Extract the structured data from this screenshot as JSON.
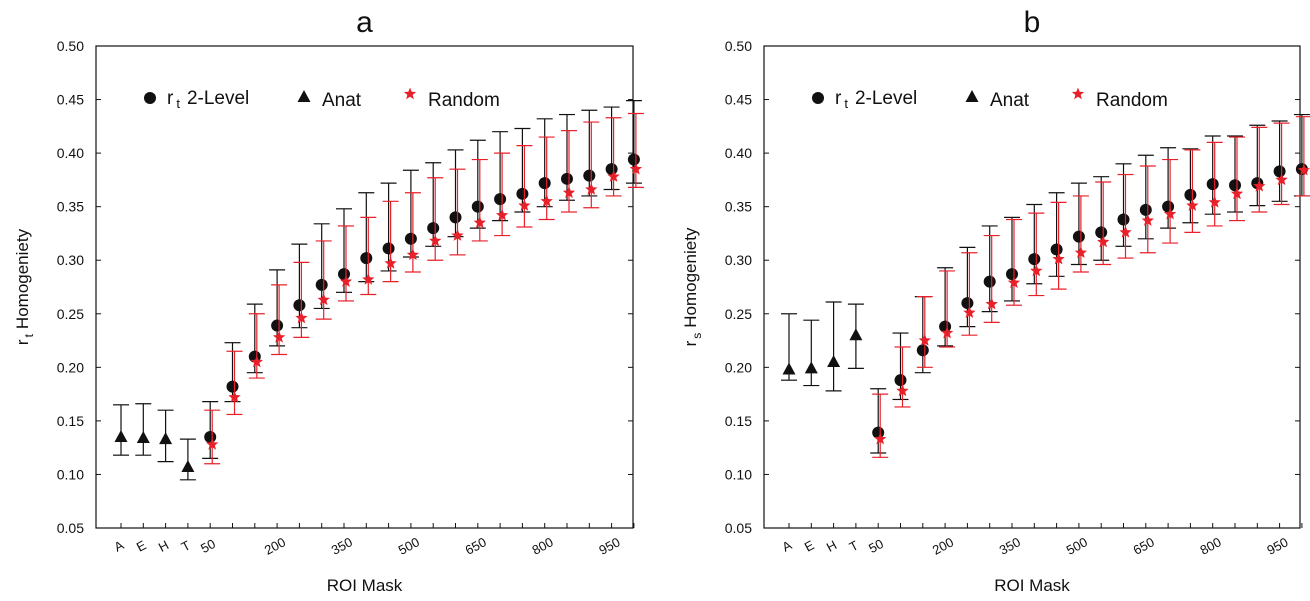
{
  "chart_data": [
    {
      "type": "scatter",
      "title": "a",
      "xlabel": "ROI Mask",
      "ylabel_main": "r",
      "ylabel_sub": "t",
      "ylabel_rest": "Homogeniety",
      "ylim": [
        0.05,
        0.5
      ],
      "yticks": [
        "0.05",
        "0.10",
        "0.15",
        "0.20",
        "0.25",
        "0.30",
        "0.35",
        "0.40",
        "0.45",
        "0.50"
      ],
      "categories": [
        "A",
        "E",
        "H",
        "T",
        "50",
        "100",
        "150",
        "200",
        "250",
        "300",
        "350",
        "400",
        "450",
        "500",
        "550",
        "600",
        "650",
        "700",
        "750",
        "800",
        "850",
        "900",
        "950",
        "1000"
      ],
      "tick_labels": [
        "A",
        "E",
        "H",
        "T",
        "50",
        "",
        "",
        "200",
        "",
        "",
        "350",
        "",
        "",
        "500",
        "",
        "",
        "650",
        "",
        "",
        "800",
        "",
        "",
        "950",
        ""
      ],
      "legend": [
        {
          "name_main": "r",
          "name_sub": "t",
          "name_rest": "2-Level",
          "marker": "circle"
        },
        {
          "name": "Anat",
          "marker": "triangle"
        },
        {
          "name": "Random",
          "marker": "star"
        }
      ],
      "series": [
        {
          "name": "Anat",
          "marker": "triangle",
          "color": "#111111",
          "points": [
            {
              "cat": "A",
              "y": 0.135,
              "lo": 0.118,
              "hi": 0.165
            },
            {
              "cat": "E",
              "y": 0.134,
              "lo": 0.118,
              "hi": 0.166
            },
            {
              "cat": "H",
              "y": 0.133,
              "lo": 0.112,
              "hi": 0.16
            },
            {
              "cat": "T",
              "y": 0.107,
              "lo": 0.095,
              "hi": 0.133
            }
          ]
        },
        {
          "name": "2-Level",
          "marker": "circle",
          "color": "#111111",
          "points": [
            {
              "cat": "50",
              "y": 0.135,
              "lo": 0.115,
              "hi": 0.168
            },
            {
              "cat": "100",
              "y": 0.182,
              "lo": 0.168,
              "hi": 0.223
            },
            {
              "cat": "150",
              "y": 0.21,
              "lo": 0.195,
              "hi": 0.259
            },
            {
              "cat": "200",
              "y": 0.239,
              "lo": 0.22,
              "hi": 0.291
            },
            {
              "cat": "250",
              "y": 0.258,
              "lo": 0.237,
              "hi": 0.315
            },
            {
              "cat": "300",
              "y": 0.277,
              "lo": 0.255,
              "hi": 0.334
            },
            {
              "cat": "350",
              "y": 0.287,
              "lo": 0.27,
              "hi": 0.348
            },
            {
              "cat": "400",
              "y": 0.302,
              "lo": 0.28,
              "hi": 0.363
            },
            {
              "cat": "450",
              "y": 0.311,
              "lo": 0.29,
              "hi": 0.372
            },
            {
              "cat": "500",
              "y": 0.32,
              "lo": 0.303,
              "hi": 0.384
            },
            {
              "cat": "550",
              "y": 0.33,
              "lo": 0.313,
              "hi": 0.391
            },
            {
              "cat": "600",
              "y": 0.34,
              "lo": 0.322,
              "hi": 0.403
            },
            {
              "cat": "650",
              "y": 0.35,
              "lo": 0.33,
              "hi": 0.412
            },
            {
              "cat": "700",
              "y": 0.357,
              "lo": 0.337,
              "hi": 0.42
            },
            {
              "cat": "750",
              "y": 0.362,
              "lo": 0.345,
              "hi": 0.423
            },
            {
              "cat": "800",
              "y": 0.372,
              "lo": 0.35,
              "hi": 0.432
            },
            {
              "cat": "850",
              "y": 0.376,
              "lo": 0.356,
              "hi": 0.436
            },
            {
              "cat": "900",
              "y": 0.379,
              "lo": 0.36,
              "hi": 0.44
            },
            {
              "cat": "950",
              "y": 0.385,
              "lo": 0.366,
              "hi": 0.443
            },
            {
              "cat": "1000",
              "y": 0.394,
              "lo": 0.372,
              "hi": 0.449
            }
          ]
        },
        {
          "name": "Random",
          "marker": "star",
          "color": "#e8202a",
          "points": [
            {
              "cat": "50",
              "y": 0.128,
              "lo": 0.11,
              "hi": 0.16
            },
            {
              "cat": "100",
              "y": 0.172,
              "lo": 0.156,
              "hi": 0.215
            },
            {
              "cat": "150",
              "y": 0.205,
              "lo": 0.19,
              "hi": 0.25
            },
            {
              "cat": "200",
              "y": 0.228,
              "lo": 0.212,
              "hi": 0.277
            },
            {
              "cat": "250",
              "y": 0.246,
              "lo": 0.228,
              "hi": 0.298
            },
            {
              "cat": "300",
              "y": 0.263,
              "lo": 0.245,
              "hi": 0.318
            },
            {
              "cat": "350",
              "y": 0.28,
              "lo": 0.262,
              "hi": 0.332
            },
            {
              "cat": "400",
              "y": 0.282,
              "lo": 0.268,
              "hi": 0.34
            },
            {
              "cat": "450",
              "y": 0.297,
              "lo": 0.28,
              "hi": 0.355
            },
            {
              "cat": "500",
              "y": 0.305,
              "lo": 0.289,
              "hi": 0.363
            },
            {
              "cat": "550",
              "y": 0.318,
              "lo": 0.3,
              "hi": 0.377
            },
            {
              "cat": "600",
              "y": 0.323,
              "lo": 0.305,
              "hi": 0.385
            },
            {
              "cat": "650",
              "y": 0.335,
              "lo": 0.318,
              "hi": 0.394
            },
            {
              "cat": "700",
              "y": 0.342,
              "lo": 0.323,
              "hi": 0.4
            },
            {
              "cat": "750",
              "y": 0.351,
              "lo": 0.331,
              "hi": 0.407
            },
            {
              "cat": "800",
              "y": 0.355,
              "lo": 0.338,
              "hi": 0.415
            },
            {
              "cat": "850",
              "y": 0.363,
              "lo": 0.345,
              "hi": 0.421
            },
            {
              "cat": "900",
              "y": 0.366,
              "lo": 0.349,
              "hi": 0.429
            },
            {
              "cat": "950",
              "y": 0.378,
              "lo": 0.36,
              "hi": 0.433
            },
            {
              "cat": "1000",
              "y": 0.385,
              "lo": 0.368,
              "hi": 0.437
            }
          ]
        }
      ]
    },
    {
      "type": "scatter",
      "title": "b",
      "xlabel": "ROI Mask",
      "ylabel_main": "r",
      "ylabel_sub": "s",
      "ylabel_rest": "Homogeniety",
      "ylim": [
        0.05,
        0.5
      ],
      "yticks": [
        "0.05",
        "0.10",
        "0.15",
        "0.20",
        "0.25",
        "0.30",
        "0.35",
        "0.40",
        "0.45",
        "0.50"
      ],
      "categories": [
        "A",
        "E",
        "H",
        "T",
        "50",
        "100",
        "150",
        "200",
        "250",
        "300",
        "350",
        "400",
        "450",
        "500",
        "550",
        "600",
        "650",
        "700",
        "750",
        "800",
        "850",
        "900",
        "950",
        "1000"
      ],
      "tick_labels": [
        "A",
        "E",
        "H",
        "T",
        "50",
        "",
        "",
        "200",
        "",
        "",
        "350",
        "",
        "",
        "500",
        "",
        "",
        "650",
        "",
        "",
        "800",
        "",
        "",
        "950",
        ""
      ],
      "legend": [
        {
          "name_main": "r",
          "name_sub": "t",
          "name_rest": "2-Level",
          "marker": "circle"
        },
        {
          "name": "Anat",
          "marker": "triangle"
        },
        {
          "name": "Random",
          "marker": "star"
        }
      ],
      "series": [
        {
          "name": "Anat",
          "marker": "triangle",
          "color": "#111111",
          "points": [
            {
              "cat": "A",
              "y": 0.198,
              "lo": 0.188,
              "hi": 0.25
            },
            {
              "cat": "E",
              "y": 0.199,
              "lo": 0.183,
              "hi": 0.244
            },
            {
              "cat": "H",
              "y": 0.205,
              "lo": 0.178,
              "hi": 0.261
            },
            {
              "cat": "T",
              "y": 0.23,
              "lo": 0.199,
              "hi": 0.259
            }
          ]
        },
        {
          "name": "2-Level",
          "marker": "circle",
          "color": "#111111",
          "points": [
            {
              "cat": "50",
              "y": 0.139,
              "lo": 0.12,
              "hi": 0.18
            },
            {
              "cat": "100",
              "y": 0.188,
              "lo": 0.17,
              "hi": 0.232
            },
            {
              "cat": "150",
              "y": 0.216,
              "lo": 0.195,
              "hi": 0.266
            },
            {
              "cat": "200",
              "y": 0.238,
              "lo": 0.22,
              "hi": 0.293
            },
            {
              "cat": "250",
              "y": 0.26,
              "lo": 0.238,
              "hi": 0.312
            },
            {
              "cat": "300",
              "y": 0.28,
              "lo": 0.252,
              "hi": 0.332
            },
            {
              "cat": "350",
              "y": 0.287,
              "lo": 0.262,
              "hi": 0.34
            },
            {
              "cat": "400",
              "y": 0.301,
              "lo": 0.278,
              "hi": 0.352
            },
            {
              "cat": "450",
              "y": 0.31,
              "lo": 0.285,
              "hi": 0.363
            },
            {
              "cat": "500",
              "y": 0.322,
              "lo": 0.296,
              "hi": 0.372
            },
            {
              "cat": "550",
              "y": 0.326,
              "lo": 0.3,
              "hi": 0.378
            },
            {
              "cat": "600",
              "y": 0.338,
              "lo": 0.313,
              "hi": 0.39
            },
            {
              "cat": "650",
              "y": 0.347,
              "lo": 0.32,
              "hi": 0.398
            },
            {
              "cat": "700",
              "y": 0.35,
              "lo": 0.33,
              "hi": 0.405
            },
            {
              "cat": "750",
              "y": 0.361,
              "lo": 0.335,
              "hi": 0.404
            },
            {
              "cat": "800",
              "y": 0.371,
              "lo": 0.343,
              "hi": 0.416
            },
            {
              "cat": "850",
              "y": 0.37,
              "lo": 0.345,
              "hi": 0.416
            },
            {
              "cat": "900",
              "y": 0.372,
              "lo": 0.351,
              "hi": 0.426
            },
            {
              "cat": "950",
              "y": 0.383,
              "lo": 0.355,
              "hi": 0.43
            },
            {
              "cat": "1000",
              "y": 0.385,
              "lo": 0.36,
              "hi": 0.436
            }
          ]
        },
        {
          "name": "Random",
          "marker": "star",
          "color": "#e8202a",
          "points": [
            {
              "cat": "50",
              "y": 0.133,
              "lo": 0.116,
              "hi": 0.175
            },
            {
              "cat": "100",
              "y": 0.178,
              "lo": 0.163,
              "hi": 0.219
            },
            {
              "cat": "150",
              "y": 0.225,
              "lo": 0.2,
              "hi": 0.266
            },
            {
              "cat": "200",
              "y": 0.232,
              "lo": 0.219,
              "hi": 0.29
            },
            {
              "cat": "250",
              "y": 0.251,
              "lo": 0.23,
              "hi": 0.307
            },
            {
              "cat": "300",
              "y": 0.259,
              "lo": 0.242,
              "hi": 0.323
            },
            {
              "cat": "350",
              "y": 0.279,
              "lo": 0.258,
              "hi": 0.338
            },
            {
              "cat": "400",
              "y": 0.29,
              "lo": 0.267,
              "hi": 0.344
            },
            {
              "cat": "450",
              "y": 0.301,
              "lo": 0.273,
              "hi": 0.354
            },
            {
              "cat": "500",
              "y": 0.307,
              "lo": 0.289,
              "hi": 0.36
            },
            {
              "cat": "550",
              "y": 0.317,
              "lo": 0.296,
              "hi": 0.373
            },
            {
              "cat": "600",
              "y": 0.326,
              "lo": 0.302,
              "hi": 0.38
            },
            {
              "cat": "650",
              "y": 0.337,
              "lo": 0.307,
              "hi": 0.388
            },
            {
              "cat": "700",
              "y": 0.343,
              "lo": 0.316,
              "hi": 0.394
            },
            {
              "cat": "750",
              "y": 0.351,
              "lo": 0.326,
              "hi": 0.403
            },
            {
              "cat": "800",
              "y": 0.354,
              "lo": 0.332,
              "hi": 0.41
            },
            {
              "cat": "850",
              "y": 0.362,
              "lo": 0.337,
              "hi": 0.415
            },
            {
              "cat": "900",
              "y": 0.369,
              "lo": 0.345,
              "hi": 0.424
            },
            {
              "cat": "950",
              "y": 0.375,
              "lo": 0.352,
              "hi": 0.428
            },
            {
              "cat": "1000",
              "y": 0.384,
              "lo": 0.36,
              "hi": 0.434
            }
          ]
        }
      ]
    }
  ]
}
